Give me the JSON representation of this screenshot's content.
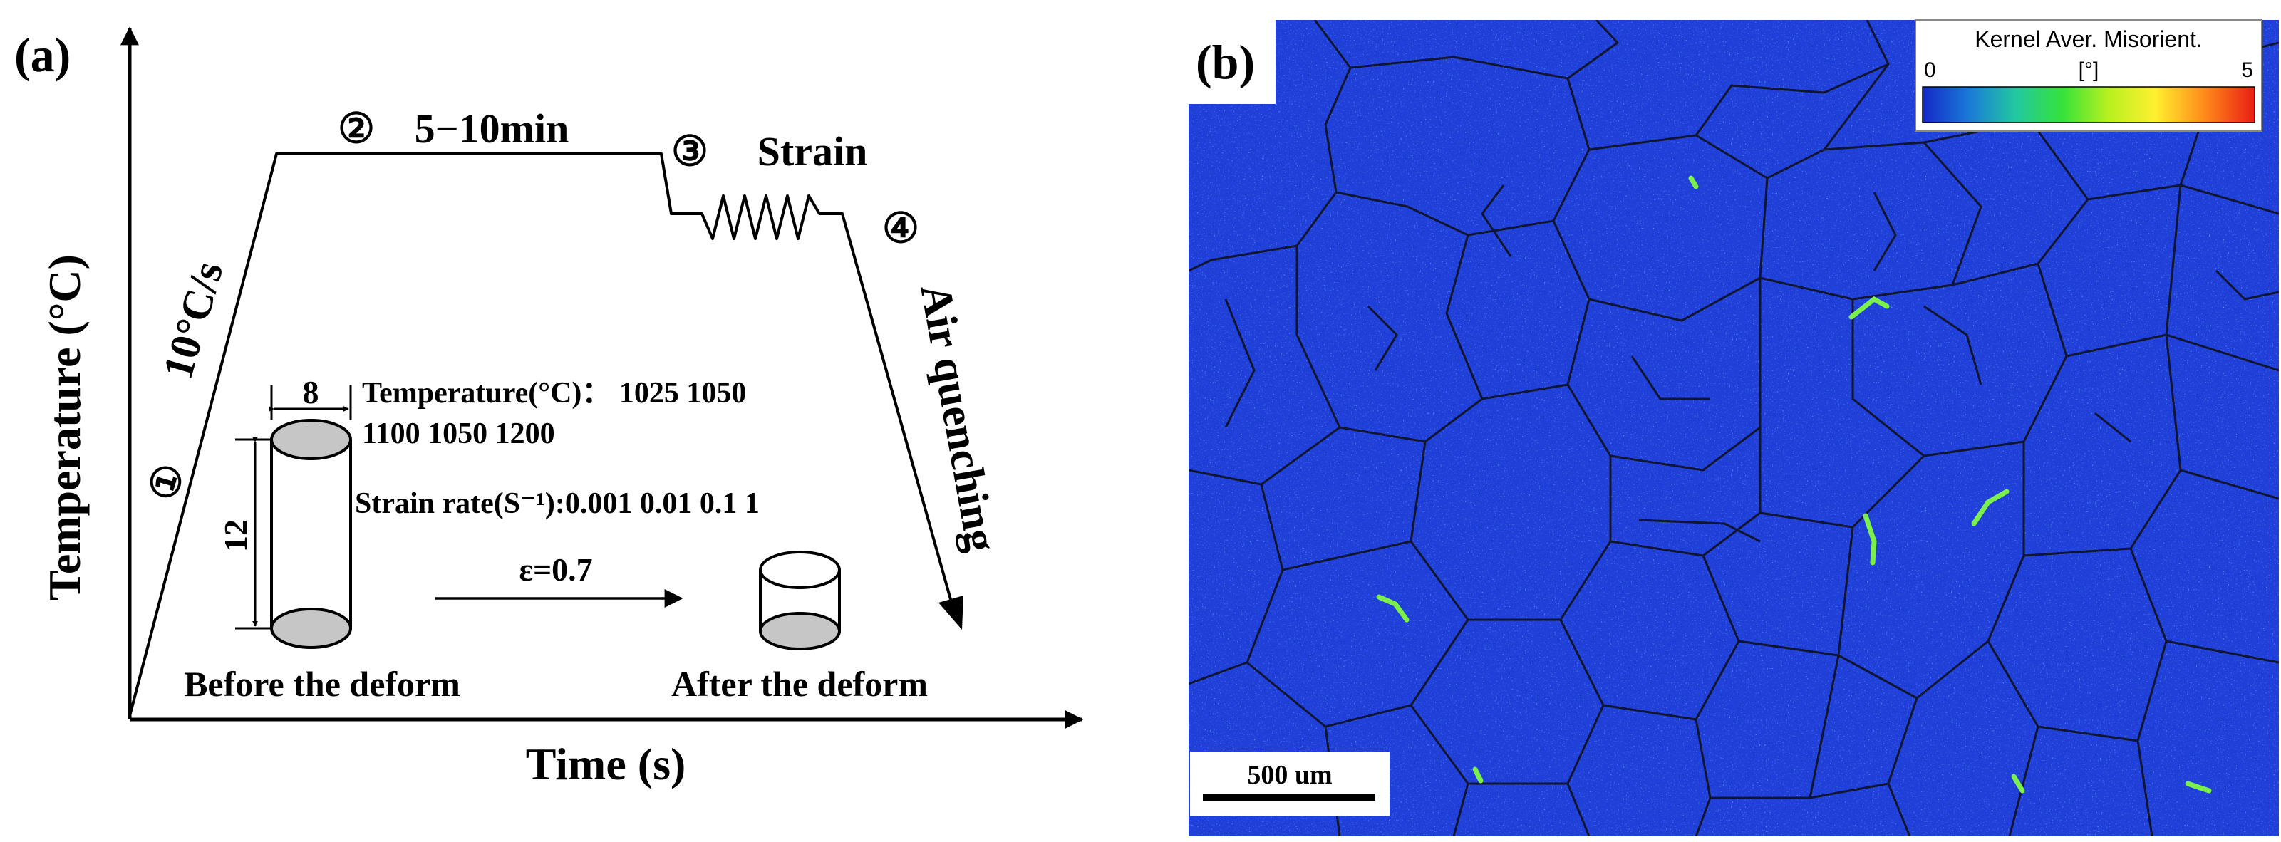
{
  "panel_a": {
    "label": "(a)",
    "ylabel": "Temperature (°C)",
    "xlabel": "Time (s)",
    "step1_num": "①",
    "step1_text": "10°C/s",
    "step2_num": "②",
    "step2_text": "5−10min",
    "step3_num": "③",
    "step3_text": "Strain",
    "step4_num": "④",
    "step4_text": "Air quenching",
    "diameter": "8",
    "height": "12",
    "temp_line1": "Temperature(°C)： 1025 1050",
    "temp_line2": "1100 1050 1200",
    "strain_rate": "Strain rate(S⁻¹):0.001 0.01 0.1 1",
    "strain": "ε=0.7",
    "before": "Before the deform",
    "after": "After the deform"
  },
  "panel_b": {
    "label": "(b)",
    "legend_title": "Kernel Aver. Misorient.",
    "legend_min": "0",
    "legend_unit": "[°]",
    "legend_max": "5",
    "scale_bar": "500 um",
    "colors": {
      "background": "#1f3fd8",
      "boundary": "#101530",
      "ramp": [
        "#1428c8",
        "#1a7ad8",
        "#22c8a0",
        "#35e23a",
        "#b8f020",
        "#fff030",
        "#ff8a1a",
        "#e81e14"
      ],
      "hotspot": "#7cf04a"
    }
  }
}
